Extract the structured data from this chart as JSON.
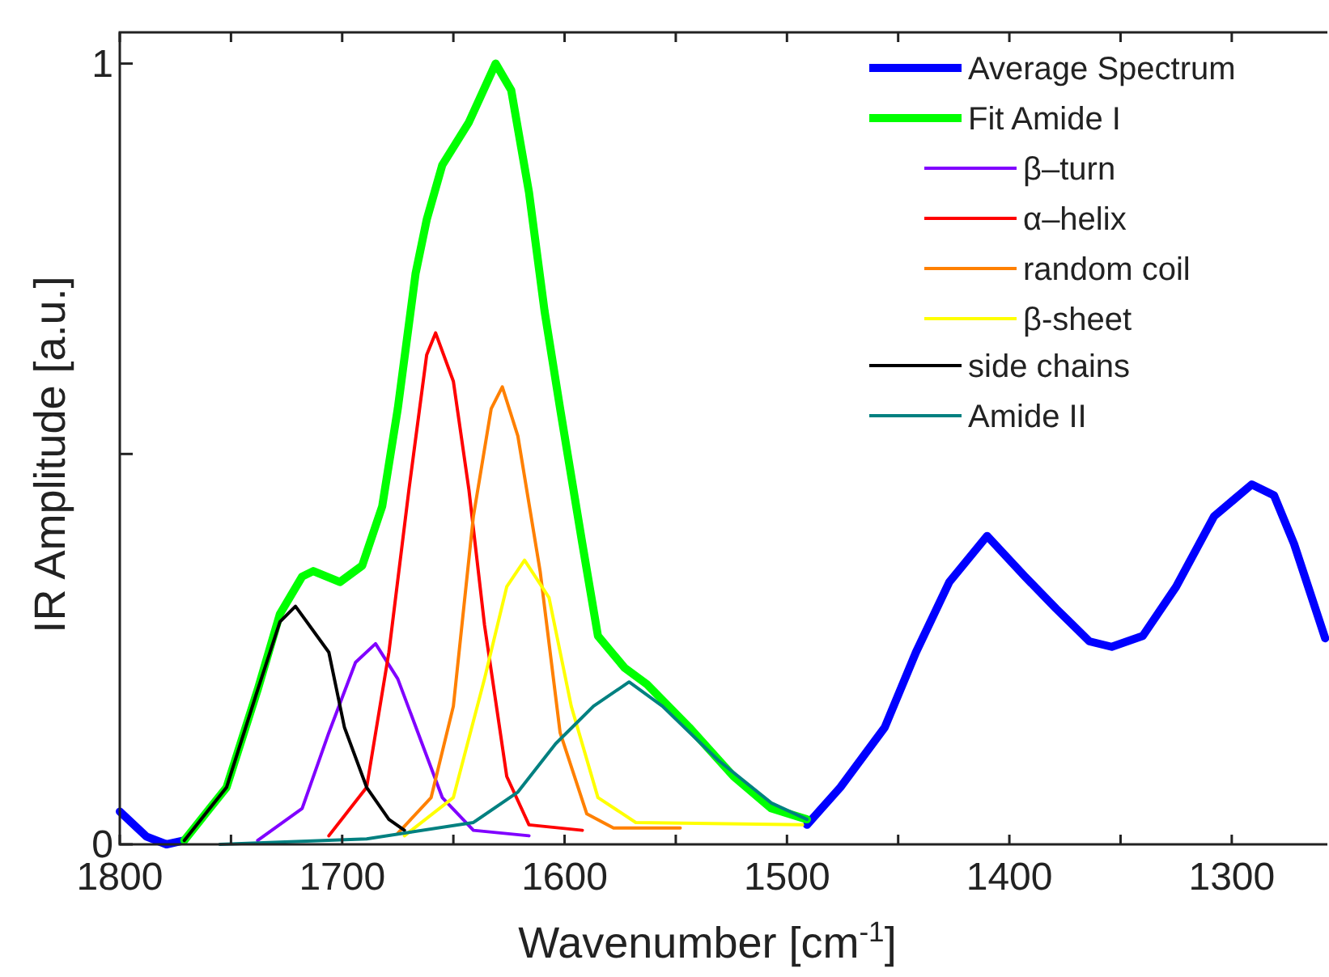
{
  "chart_data": {
    "type": "line",
    "xlabel": "Wavenumber [cm$^{-1}$]",
    "ylabel": "IR Amplitude [a.u.]",
    "xlim": [
      1800,
      1257
    ],
    "ylim": [
      0,
      1.04
    ],
    "xticks": [
      1800,
      {
        "value": 1750,
        "label": null
      },
      1700,
      {
        "value": 1650,
        "label": null
      },
      1600,
      {
        "value": 1550,
        "label": null
      },
      1500,
      {
        "value": 1450,
        "label": null
      },
      1400,
      {
        "value": 1350,
        "label": null
      },
      1300
    ],
    "yticks": [
      0,
      {
        "value": 0.5,
        "label": null
      },
      1
    ],
    "legend": "top right",
    "grid": false,
    "marker": "none",
    "line_style": "solid",
    "series": [
      {
        "name": "Average Spectrum",
        "color": "#0000ff",
        "x": [
          1800,
          1788,
          1779,
          1771,
          1752,
          1738,
          1728,
          1718,
          1713,
          1701,
          1691,
          1682,
          1675,
          1667,
          1662,
          1655,
          1643,
          1631,
          1624,
          1616,
          1609,
          1602,
          1592,
          1585,
          1573,
          1563,
          1544,
          1524,
          1507,
          1491,
          1476,
          1456,
          1442,
          1427,
          1410,
          1393,
          1379,
          1364,
          1354,
          1340,
          1325,
          1308,
          1291,
          1281,
          1272,
          1258
        ],
        "values": [
          0.042,
          0.01,
          0.0,
          0.005,
          null,
          null,
          null,
          null,
          null,
          null,
          null,
          null,
          null,
          null,
          null,
          null,
          null,
          null,
          null,
          null,
          null,
          null,
          null,
          null,
          null,
          null,
          null,
          null,
          null,
          0.025,
          0.073,
          0.15,
          0.246,
          0.336,
          0.395,
          0.343,
          0.302,
          0.26,
          0.253,
          0.267,
          0.33,
          0.42,
          0.461,
          0.447,
          0.385,
          0.264
        ]
      },
      {
        "name": "Fit Amide I",
        "color": "#00ff00",
        "x": [
          1771,
          1752,
          1738,
          1728,
          1718,
          1713,
          1701,
          1691,
          1682,
          1675,
          1667,
          1662,
          1655,
          1643,
          1631,
          1624,
          1616,
          1609,
          1602,
          1592,
          1585,
          1573,
          1563,
          1544,
          1524,
          1507,
          1491
        ],
        "values": [
          0.005,
          0.073,
          0.198,
          0.295,
          0.343,
          0.35,
          0.336,
          0.357,
          0.433,
          0.558,
          0.731,
          0.8,
          0.87,
          0.925,
          1.0,
          0.966,
          0.835,
          0.683,
          0.558,
          0.385,
          0.267,
          0.226,
          0.205,
          0.15,
          0.087,
          0.046,
          0.032
        ]
      },
      {
        "name": "β–turn",
        "color": "#8000ff",
        "x": [
          1738,
          1718,
          1706,
          1694,
          1685,
          1675,
          1665,
          1655,
          1641,
          1616
        ],
        "values": [
          0.005,
          0.046,
          0.143,
          0.233,
          0.257,
          0.212,
          0.136,
          0.06,
          0.018,
          0.011
        ]
      },
      {
        "name": "α–helix",
        "color": "#ff0000",
        "x": [
          1706,
          1689,
          1679,
          1670,
          1662,
          1658,
          1650,
          1643,
          1636,
          1626,
          1616,
          1592
        ],
        "values": [
          0.011,
          0.073,
          0.246,
          0.454,
          0.627,
          0.655,
          0.593,
          0.454,
          0.281,
          0.087,
          0.025,
          0.018
        ]
      },
      {
        "name": "random coil",
        "color": "#ff8000",
        "x": [
          1675,
          1660,
          1650,
          1641,
          1633,
          1628,
          1621,
          1611,
          1602,
          1590,
          1578,
          1548
        ],
        "values": [
          0.014,
          0.06,
          0.177,
          0.42,
          0.558,
          0.586,
          0.523,
          0.35,
          0.143,
          0.039,
          0.021,
          0.021
        ]
      },
      {
        "name": "β-sheet",
        "color": "#ffff00",
        "x": [
          1672,
          1650,
          1636,
          1626,
          1618,
          1607,
          1597,
          1585,
          1568,
          1493
        ],
        "values": [
          0.011,
          0.06,
          0.212,
          0.33,
          0.364,
          0.316,
          0.177,
          0.06,
          0.028,
          0.025
        ]
      },
      {
        "name": "side chains",
        "color": "#000000",
        "x": [
          1771,
          1752,
          1738,
          1728,
          1721,
          1706,
          1699,
          1689,
          1679,
          1672
        ],
        "values": [
          0.005,
          0.073,
          0.198,
          0.285,
          0.305,
          0.246,
          0.15,
          0.073,
          0.032,
          0.018
        ]
      },
      {
        "name": "Amide II",
        "color": "#008080",
        "x": [
          1755,
          1689,
          1641,
          1621,
          1604,
          1587,
          1571,
          1556,
          1531,
          1507,
          1491
        ],
        "values": [
          0.0,
          0.007,
          0.028,
          0.067,
          0.129,
          0.177,
          0.208,
          0.177,
          0.108,
          0.053,
          0.032
        ]
      }
    ]
  }
}
